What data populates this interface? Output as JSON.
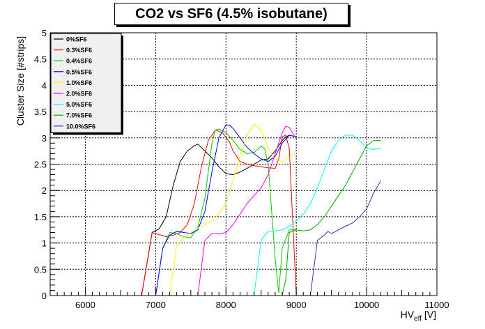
{
  "chart_data": {
    "type": "line",
    "title": "CO2 vs SF6 (4.5% isobutane)",
    "xlabel": "HV",
    "xlabel_sub": "eff",
    "xlabel_unit": " [V]",
    "ylabel": "Cluster Size [#strips]",
    "xlim": [
      5500,
      11000
    ],
    "ylim": [
      0,
      5
    ],
    "xticks": [
      6000,
      7000,
      8000,
      9000,
      10000,
      11000
    ],
    "xtick_labels": [
      "6000",
      "7000",
      "8000",
      "9000",
      "10000",
      "11000"
    ],
    "yticks": [
      0,
      0.5,
      1,
      1.5,
      2,
      2.5,
      3,
      3.5,
      4,
      4.5,
      5
    ],
    "ytick_labels": [
      "0",
      "0.5",
      "1",
      "1.5",
      "2",
      "2.5",
      "3",
      "3.5",
      "4",
      "4.5",
      "5"
    ],
    "grid": true,
    "legend_position": "top-left",
    "series": [
      {
        "name": "0%SF6",
        "color": "#000000",
        "x": [
          6800,
          6950,
          7050,
          7150,
          7250,
          7350,
          7450,
          7550,
          7600,
          7700,
          7800,
          7900,
          8000,
          8100,
          8200,
          8300,
          8400,
          8500,
          8600,
          8700,
          8800,
          8850,
          8900,
          9000
        ],
        "y": [
          0,
          1.2,
          1.27,
          1.5,
          2.1,
          2.55,
          2.75,
          2.85,
          2.88,
          2.75,
          2.62,
          2.45,
          2.32,
          2.3,
          2.35,
          2.42,
          2.5,
          2.58,
          2.6,
          2.75,
          2.95,
          3.02,
          3.05,
          3.02
        ]
      },
      {
        "name": "0.3%SF6",
        "color": "#ff0000",
        "x": [
          6800,
          6950,
          7050,
          7150,
          7250,
          7350,
          7450,
          7550,
          7650,
          7750,
          7850,
          7950,
          8050,
          8100,
          8200,
          8300,
          8400,
          8500,
          8600,
          8700,
          8750,
          8800,
          8850,
          8900,
          9000
        ],
        "y": [
          0,
          1.2,
          1.16,
          1.12,
          1.15,
          1.2,
          1.35,
          1.75,
          2.45,
          2.95,
          3.15,
          3.1,
          2.92,
          2.75,
          2.55,
          2.5,
          2.47,
          2.45,
          2.43,
          2.42,
          2.6,
          3.02,
          3.05,
          2.8,
          0
        ]
      },
      {
        "name": "0.4%SF6",
        "color": "#00cc00",
        "x": [
          7000,
          7100,
          7200,
          7300,
          7400,
          7500,
          7600,
          7700,
          7800,
          7850,
          7900,
          8000,
          8100,
          8200,
          8300,
          8400,
          8450,
          8500,
          8550,
          8600,
          8700,
          8750,
          8800,
          8900,
          9000
        ],
        "y": [
          0,
          0.9,
          1.2,
          1.18,
          1.12,
          1.1,
          1.3,
          1.85,
          2.9,
          3.15,
          3.17,
          3.1,
          2.95,
          2.78,
          2.7,
          2.72,
          2.78,
          2.84,
          2.8,
          2.5,
          0.7,
          0.05,
          0.9,
          1.25,
          1.25
        ]
      },
      {
        "name": "0.5%SF6",
        "color": "#0000ff",
        "x": [
          7000,
          7100,
          7200,
          7300,
          7400,
          7500,
          7600,
          7700,
          7800,
          7900,
          8000,
          8050,
          8100,
          8200,
          8300,
          8400,
          8500,
          8600,
          8700,
          8800,
          8900,
          9000
        ],
        "y": [
          0,
          0.9,
          1.15,
          1.22,
          1.2,
          1.18,
          1.25,
          1.6,
          2.35,
          3.0,
          3.25,
          3.24,
          3.18,
          3.0,
          2.82,
          2.7,
          2.6,
          2.55,
          2.65,
          2.9,
          3.05,
          3.02
        ]
      },
      {
        "name": "1.0%SF6",
        "color": "#ffff00",
        "x": [
          7200,
          7300,
          7400,
          7500,
          7600,
          7700,
          7800,
          7900,
          8000,
          8100,
          8200,
          8300,
          8400,
          8500,
          8600,
          8700,
          8800,
          8900,
          9000
        ],
        "y": [
          0,
          0.95,
          1.1,
          1.2,
          1.28,
          1.35,
          1.42,
          1.55,
          1.75,
          2.2,
          2.65,
          3.05,
          3.26,
          3.15,
          2.8,
          2.6,
          2.55,
          2.65,
          2.7
        ]
      },
      {
        "name": "2.0%SF6",
        "color": "#ff00ff",
        "x": [
          7600,
          7700,
          7800,
          7900,
          8000,
          8100,
          8200,
          8300,
          8400,
          8500,
          8600,
          8700,
          8800,
          8850,
          8900,
          9000
        ],
        "y": [
          0,
          1.05,
          1.18,
          1.17,
          1.2,
          1.35,
          1.55,
          1.75,
          1.9,
          2.05,
          2.3,
          2.7,
          3.1,
          3.22,
          3.2,
          2.98
        ]
      },
      {
        "name": "5.0%SF6",
        "color": "#00ffff",
        "x": [
          8400,
          8500,
          8600,
          8700,
          8800,
          8900,
          9000,
          9100,
          9200,
          9300,
          9400,
          9500,
          9600,
          9700,
          9800,
          9900,
          10000,
          10100,
          10200
        ],
        "y": [
          0,
          1.05,
          1.22,
          1.23,
          1.25,
          1.32,
          1.42,
          1.55,
          1.75,
          2.05,
          2.4,
          2.75,
          2.95,
          3.05,
          3.05,
          2.95,
          2.8,
          2.78,
          2.8
        ]
      },
      {
        "name": "7.0%SF6",
        "color": "#00aa00",
        "x": [
          8800,
          8850,
          8900,
          9000,
          9100,
          9200,
          9300,
          9400,
          9500,
          9600,
          9700,
          9800,
          9900,
          10000,
          10100,
          10200
        ],
        "y": [
          0,
          0.3,
          1.2,
          1.25,
          1.23,
          1.25,
          1.35,
          1.5,
          1.7,
          1.9,
          2.1,
          2.35,
          2.6,
          2.85,
          2.95,
          2.95
        ]
      },
      {
        "name": "10.0%SF6",
        "color": "#3333aa",
        "x": [
          9200,
          9300,
          9400,
          9450,
          9500,
          9600,
          9700,
          9800,
          9900,
          10000,
          10100,
          10200
        ],
        "y": [
          0,
          1.05,
          1.15,
          1.22,
          1.18,
          1.25,
          1.32,
          1.38,
          1.5,
          1.65,
          1.95,
          2.18
        ]
      }
    ]
  }
}
